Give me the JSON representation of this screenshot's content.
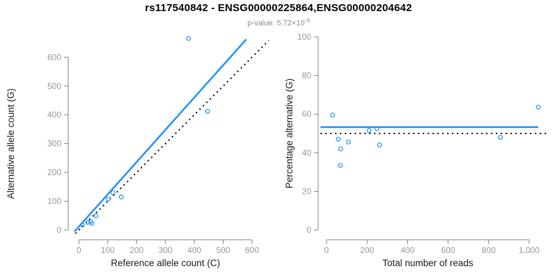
{
  "header": {
    "title": "rs117540842 - ENSG00000225864,ENSG00000204642",
    "pvalue_text": "p-value: 5.72×10",
    "pvalue_exponent": "-4"
  },
  "colors": {
    "accent_blue": "#1E90FF",
    "identity_black": "#000000",
    "axis_line": "#808080",
    "tick_label": "#979797",
    "axis_title": "#1a1a1a",
    "title": "#000000",
    "subtitle": "#8c8c8c",
    "background": "#ffffff"
  },
  "chart_data": [
    {
      "type": "scatter",
      "title": "",
      "xlabel": "Reference allele count (C)",
      "ylabel": "Alternative allele count (G)",
      "xlim": [
        0,
        600
      ],
      "ylim": [
        0,
        600
      ],
      "grid": false,
      "legend": "none",
      "xtick_values": [
        0,
        100,
        200,
        300,
        400,
        500,
        600
      ],
      "xtick_labels": [
        "0",
        "100",
        "200",
        "300",
        "400",
        "500",
        "600"
      ],
      "ytick_values": [
        0,
        100,
        200,
        300,
        400,
        500,
        600
      ],
      "ytick_labels": [
        "0",
        "100",
        "200",
        "300",
        "400",
        "500",
        "600"
      ],
      "marker": "open-circle",
      "points": [
        [
          12,
          18
        ],
        [
          31,
          27
        ],
        [
          41,
          29
        ],
        [
          45,
          23
        ],
        [
          59,
          49
        ],
        [
          102,
          108
        ],
        [
          118,
          130
        ],
        [
          147,
          115
        ],
        [
          446,
          412
        ],
        [
          380,
          665
        ]
      ],
      "lines": [
        {
          "name": "fitted-line",
          "style": "solid",
          "color": "#1E90FF",
          "from": [
            -15,
            -5
          ],
          "to": [
            580,
            662
          ]
        },
        {
          "name": "identity-line",
          "style": "dotted",
          "color": "#000000",
          "from": [
            -12,
            -12
          ],
          "to": [
            658,
            658
          ]
        }
      ]
    },
    {
      "type": "scatter",
      "title": "",
      "xlabel": "Total number of reads",
      "ylabel": "Percentage alternative (G)",
      "xlim": [
        0,
        1000
      ],
      "ylim": [
        0,
        100
      ],
      "grid": false,
      "legend": "none",
      "xtick_values": [
        0,
        200,
        400,
        600,
        800,
        1000
      ],
      "xtick_labels": [
        "0",
        "200",
        "400",
        "600",
        "800",
        "1,000"
      ],
      "ytick_values": [
        0,
        20,
        40,
        60,
        80,
        100
      ],
      "ytick_labels": [
        "0",
        "20",
        "40",
        "60",
        "80",
        "100"
      ],
      "marker": "open-circle",
      "points": [
        [
          30,
          59.5
        ],
        [
          58,
          47
        ],
        [
          70,
          42
        ],
        [
          68,
          33.5
        ],
        [
          108,
          45.5
        ],
        [
          210,
          51.5
        ],
        [
          248,
          52.5
        ],
        [
          262,
          44
        ],
        [
          858,
          48
        ],
        [
          1045,
          63.6
        ]
      ],
      "lines": [
        {
          "name": "fitted-line",
          "style": "solid",
          "color": "#1E90FF",
          "from": [
            -30,
            53.3
          ],
          "to": [
            1045,
            53.3
          ]
        },
        {
          "name": "null-line",
          "style": "dotted",
          "color": "#000000",
          "from": [
            -30,
            50
          ],
          "to": [
            1100,
            50
          ]
        }
      ]
    }
  ]
}
